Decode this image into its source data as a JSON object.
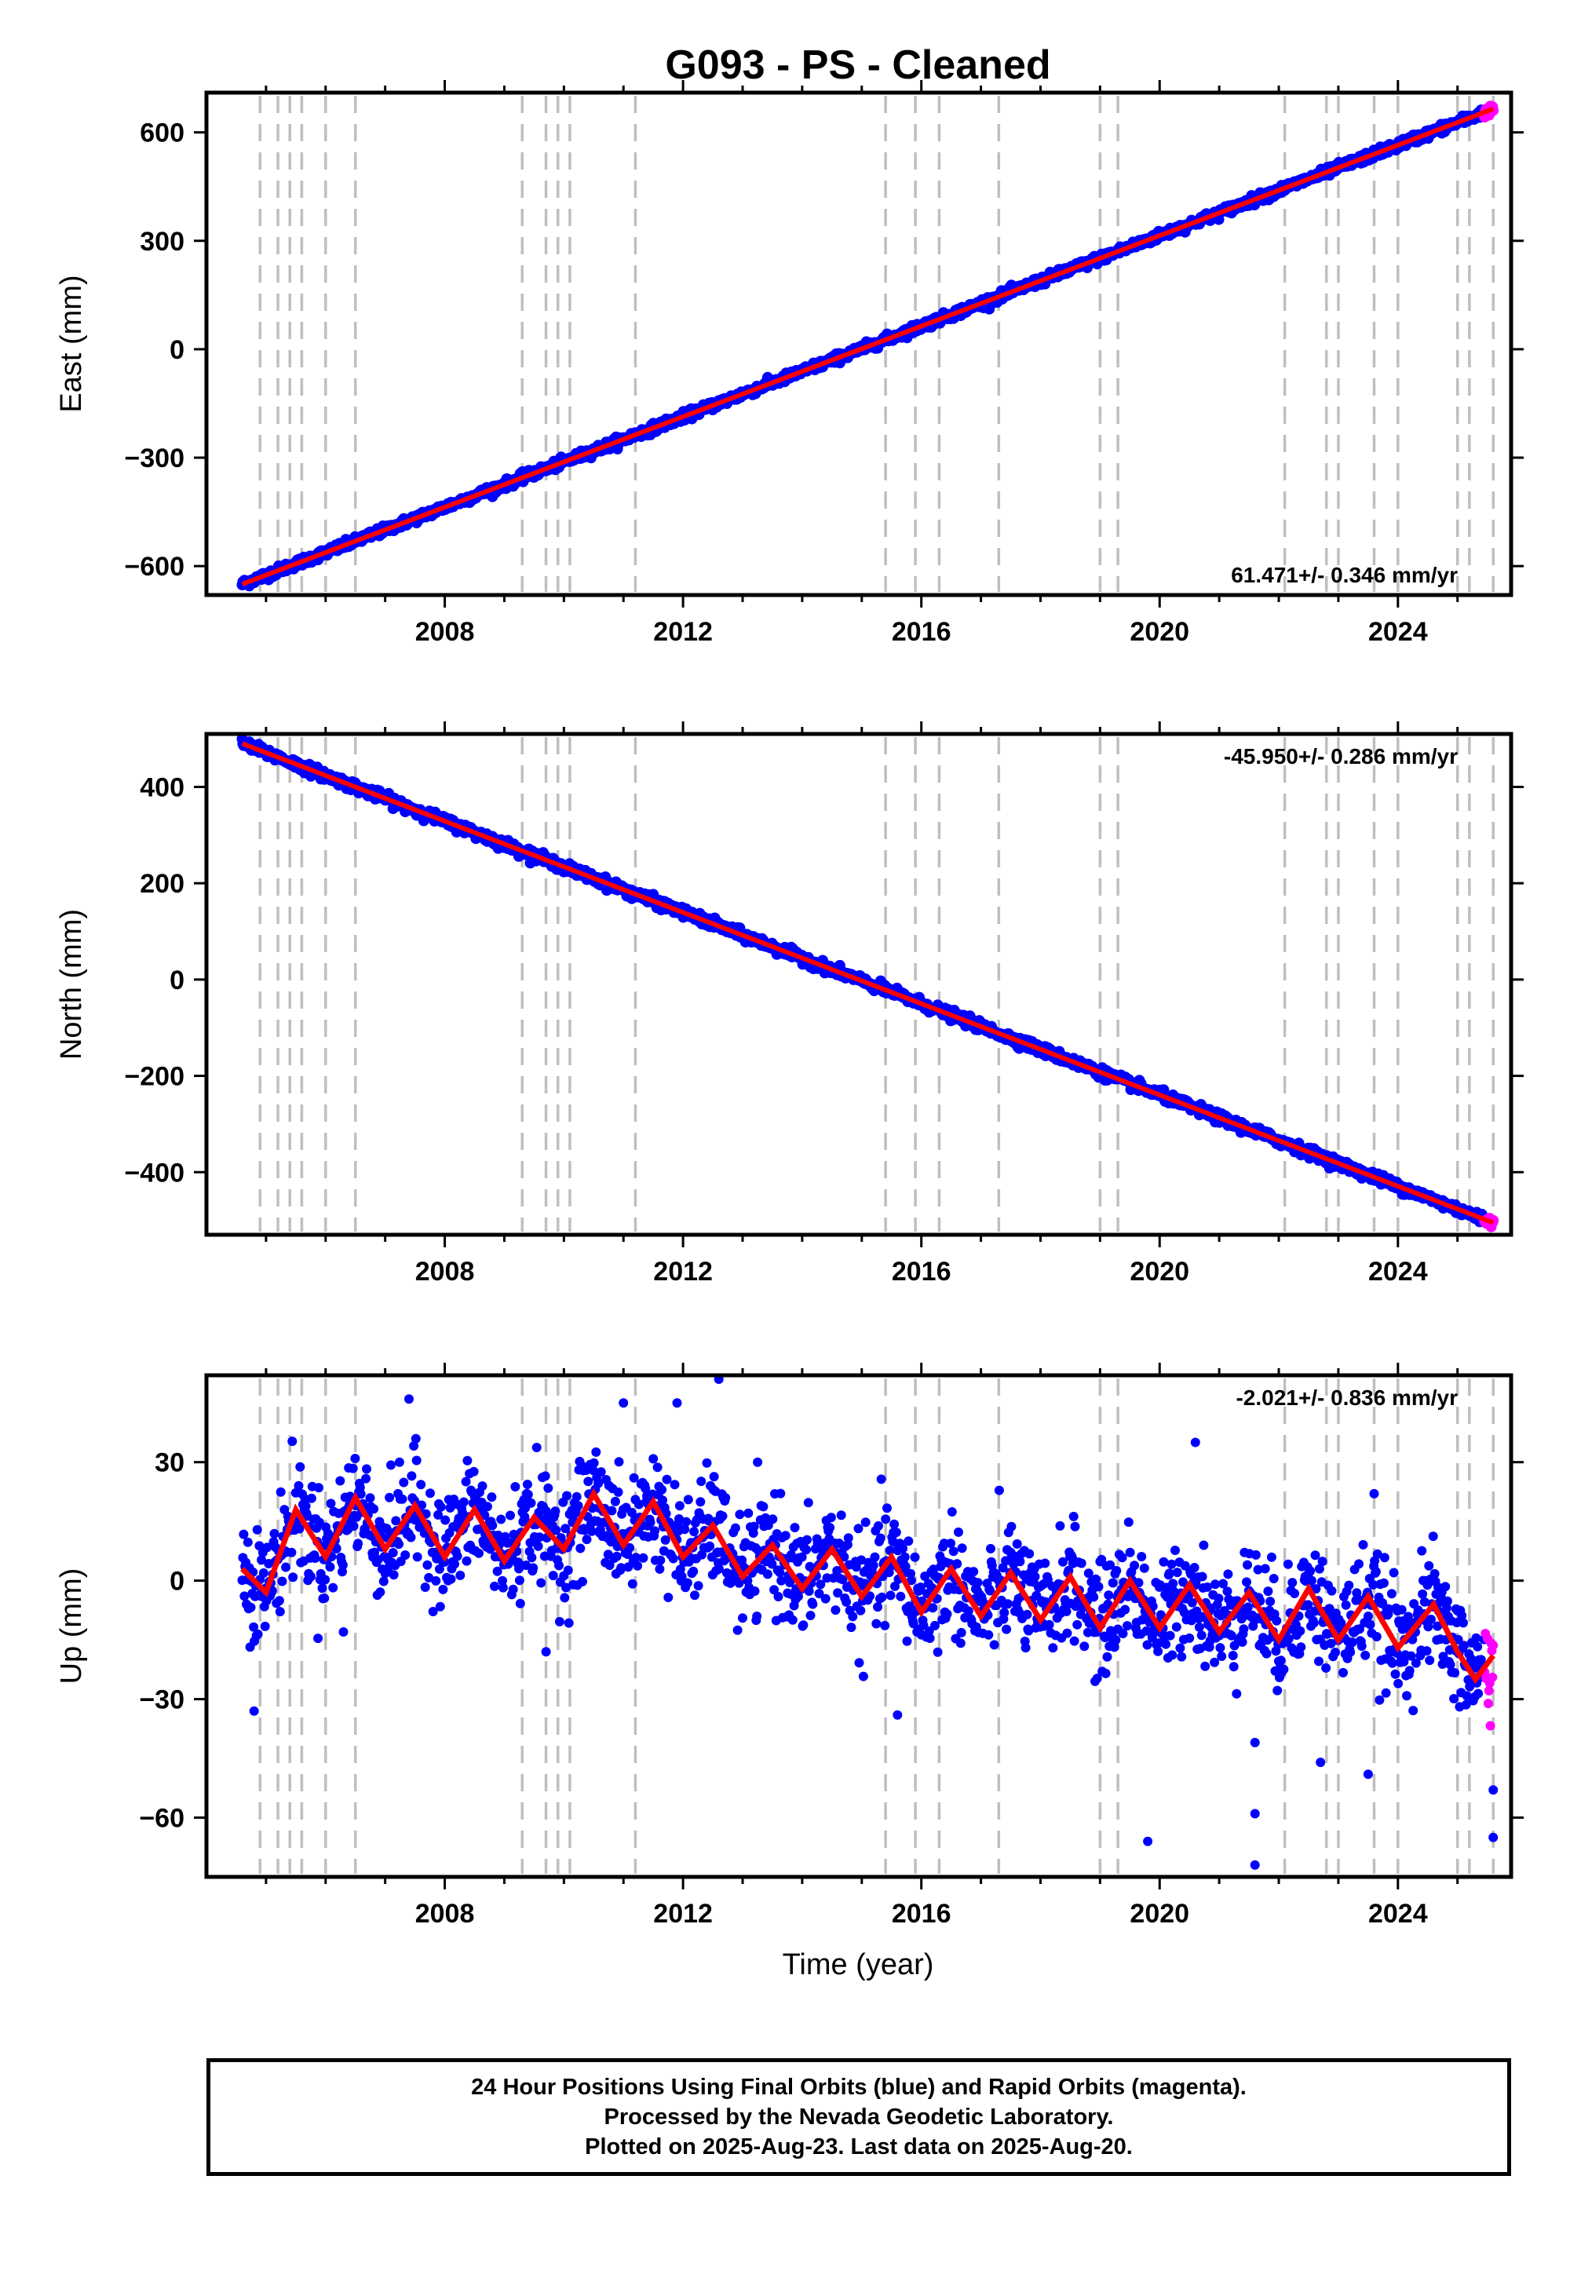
{
  "title": "G093  - PS - Cleaned",
  "xlabel": "Time (year)",
  "caption": [
    "24 Hour Positions Using Final Orbits (blue) and Rapid Orbits (magenta).",
    "Processed by the Nevada Geodetic Laboratory.",
    "Plotted on 2025-Aug-23. Last data on 2025-Aug-20."
  ],
  "colors": {
    "final_orbits": "#0000ff",
    "rapid_orbits": "#ff00ff",
    "model_fit": "#ff0000",
    "event_lines": "#bfbfbf"
  },
  "chart_data": [
    {
      "type": "scatter",
      "component": "East",
      "ylabel": "East (mm)",
      "xlim": [
        2004.0,
        2025.9
      ],
      "ylim": [
        -680,
        710
      ],
      "xticks": [
        2008,
        2012,
        2016,
        2020,
        2024
      ],
      "yticks": [
        -600,
        -300,
        0,
        300,
        600
      ],
      "ytick_labels": [
        "−600",
        "−300",
        "0",
        "300",
        "600"
      ],
      "rate_label": "61.471+/- 0.346 mm/yr",
      "rate_position": "bottom-right",
      "start": {
        "x": 2004.6,
        "y": -650
      },
      "end": {
        "x": 2025.6,
        "y": 665
      },
      "noise_mm": 6,
      "series": [
        {
          "name": "Final Orbits (blue)",
          "color": "#0000ff"
        },
        {
          "name": "Rapid Orbits (magenta)",
          "color": "#ff00ff",
          "x_from": 2025.45
        },
        {
          "name": "model fit",
          "color": "#ff0000"
        }
      ]
    },
    {
      "type": "scatter",
      "component": "North",
      "ylabel": "North (mm)",
      "xlim": [
        2004.0,
        2025.9
      ],
      "ylim": [
        -530,
        510
      ],
      "xticks": [
        2008,
        2012,
        2016,
        2020,
        2024
      ],
      "yticks": [
        -400,
        -200,
        0,
        200,
        400
      ],
      "ytick_labels": [
        "−400",
        "−200",
        "0",
        "200",
        "400"
      ],
      "rate_label": "-45.950+/- 0.286 mm/yr",
      "rate_position": "top-right",
      "start": {
        "x": 2004.6,
        "y": 490
      },
      "end": {
        "x": 2025.6,
        "y": -505
      },
      "noise_mm": 5,
      "series": [
        {
          "name": "Final Orbits (blue)",
          "color": "#0000ff"
        },
        {
          "name": "Rapid Orbits (magenta)",
          "color": "#ff00ff",
          "x_from": 2025.45
        },
        {
          "name": "model fit",
          "color": "#ff0000"
        }
      ]
    },
    {
      "type": "scatter",
      "component": "Up",
      "ylabel": "Up (mm)",
      "xlim": [
        2004.0,
        2025.9
      ],
      "ylim": [
        -75,
        52
      ],
      "xticks": [
        2008,
        2012,
        2016,
        2020,
        2024
      ],
      "yticks": [
        -60,
        -30,
        0,
        30
      ],
      "ytick_labels": [
        "−60",
        "−30",
        "0",
        "30"
      ],
      "rate_label": "-2.021+/- 0.836 mm/yr",
      "rate_position": "top-right",
      "seasonal_fit": [
        {
          "x": 2004.6,
          "y": 3
        },
        {
          "x": 2005.0,
          "y": -3
        },
        {
          "x": 2005.5,
          "y": 18
        },
        {
          "x": 2006.0,
          "y": 6
        },
        {
          "x": 2006.5,
          "y": 21
        },
        {
          "x": 2007.0,
          "y": 8
        },
        {
          "x": 2007.5,
          "y": 19
        },
        {
          "x": 2008.0,
          "y": 6
        },
        {
          "x": 2008.5,
          "y": 18
        },
        {
          "x": 2009.0,
          "y": 5
        },
        {
          "x": 2009.5,
          "y": 16
        },
        {
          "x": 2010.0,
          "y": 8
        },
        {
          "x": 2010.5,
          "y": 22
        },
        {
          "x": 2011.0,
          "y": 9
        },
        {
          "x": 2011.5,
          "y": 20
        },
        {
          "x": 2012.0,
          "y": 6
        },
        {
          "x": 2012.5,
          "y": 14
        },
        {
          "x": 2013.0,
          "y": 1
        },
        {
          "x": 2013.5,
          "y": 9
        },
        {
          "x": 2014.0,
          "y": -2
        },
        {
          "x": 2014.5,
          "y": 8
        },
        {
          "x": 2015.0,
          "y": -4
        },
        {
          "x": 2015.5,
          "y": 6
        },
        {
          "x": 2016.0,
          "y": -8
        },
        {
          "x": 2016.5,
          "y": 3
        },
        {
          "x": 2017.0,
          "y": -9
        },
        {
          "x": 2017.5,
          "y": 2
        },
        {
          "x": 2018.0,
          "y": -10
        },
        {
          "x": 2018.5,
          "y": 1
        },
        {
          "x": 2019.0,
          "y": -12
        },
        {
          "x": 2019.5,
          "y": 0
        },
        {
          "x": 2020.0,
          "y": -12
        },
        {
          "x": 2020.5,
          "y": -1
        },
        {
          "x": 2021.0,
          "y": -13
        },
        {
          "x": 2021.5,
          "y": -3
        },
        {
          "x": 2022.0,
          "y": -15
        },
        {
          "x": 2022.5,
          "y": -2
        },
        {
          "x": 2023.0,
          "y": -15
        },
        {
          "x": 2023.5,
          "y": -4
        },
        {
          "x": 2024.0,
          "y": -17
        },
        {
          "x": 2024.6,
          "y": -6
        },
        {
          "x": 2025.0,
          "y": -18
        },
        {
          "x": 2025.3,
          "y": -25
        },
        {
          "x": 2025.6,
          "y": -19
        }
      ],
      "noise_mm": 7,
      "series": [
        {
          "name": "Final Orbits (blue)",
          "color": "#0000ff"
        },
        {
          "name": "Rapid Orbits (magenta)",
          "color": "#ff00ff",
          "x_from": 2025.45
        },
        {
          "name": "model fit",
          "color": "#ff0000"
        }
      ],
      "outliers": [
        {
          "x": 2012.6,
          "y": 51
        },
        {
          "x": 2011.9,
          "y": 45
        },
        {
          "x": 2011.0,
          "y": 45
        },
        {
          "x": 2007.4,
          "y": 46
        },
        {
          "x": 2004.8,
          "y": -33
        },
        {
          "x": 2019.8,
          "y": -66
        },
        {
          "x": 2021.6,
          "y": -72
        },
        {
          "x": 2021.6,
          "y": -59
        },
        {
          "x": 2021.6,
          "y": -41
        },
        {
          "x": 2025.6,
          "y": -65
        },
        {
          "x": 2025.6,
          "y": -53
        },
        {
          "x": 2023.5,
          "y": -49
        },
        {
          "x": 2022.7,
          "y": -46
        },
        {
          "x": 2015.6,
          "y": -34
        },
        {
          "x": 2006.3,
          "y": -13
        },
        {
          "x": 2009.7,
          "y": -18
        },
        {
          "x": 2020.6,
          "y": 35
        },
        {
          "x": 2023.6,
          "y": 22
        }
      ]
    }
  ],
  "event_lines_years": [
    2004.9,
    2005.2,
    2005.4,
    2005.6,
    2006.0,
    2006.5,
    2009.3,
    2009.7,
    2009.9,
    2010.1,
    2011.2,
    2015.4,
    2015.9,
    2016.3,
    2017.3,
    2019.0,
    2019.3,
    2022.1,
    2022.8,
    2023.0,
    2023.6,
    2024.0,
    2025.0,
    2025.2,
    2025.6
  ]
}
